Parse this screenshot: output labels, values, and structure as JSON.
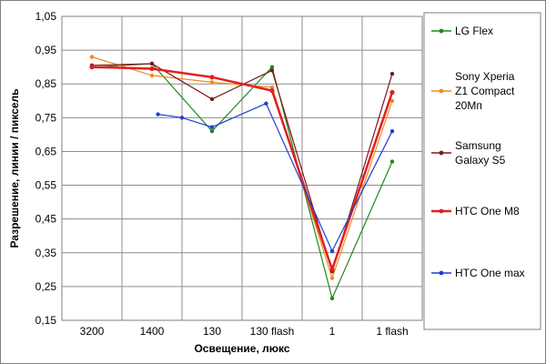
{
  "chart_data": {
    "type": "line",
    "categories": [
      "3200",
      "1400",
      "130",
      "130 flash",
      "1",
      "1 flash"
    ],
    "xlabel": "Освещение, люкс",
    "ylabel": "Разрешение, линии / пиксель",
    "ylim": [
      0.15,
      1.05
    ],
    "yticks": [
      "0,15",
      "0,25",
      "0,35",
      "0,45",
      "0,55",
      "0,65",
      "0,75",
      "0,85",
      "0,95",
      "1,05"
    ],
    "grid": true,
    "legend_position": "right",
    "series": [
      {
        "name": "LG Flex",
        "color": "#1f8a1f",
        "points": [
          [
            0,
            0.9
          ],
          [
            1,
            0.91
          ],
          [
            2,
            0.71
          ],
          [
            3,
            0.9
          ],
          [
            4,
            0.215
          ],
          [
            5,
            0.62
          ]
        ]
      },
      {
        "name": "Sony Xperia Z1 Compact 20Мп",
        "legend_lines": [
          "Sony Xperia",
          "Z1 Compact",
          "20Мп"
        ],
        "color": "#f08a24",
        "points": [
          [
            0,
            0.93
          ],
          [
            1,
            0.875
          ],
          [
            2,
            0.855
          ],
          [
            3,
            0.84
          ],
          [
            4,
            0.275
          ],
          [
            5,
            0.8
          ]
        ]
      },
      {
        "name": "Samsung Galaxy S5",
        "legend_lines": [
          "Samsung",
          "Galaxy S5"
        ],
        "color": "#7a1a1a",
        "points": [
          [
            0,
            0.905
          ],
          [
            1,
            0.91
          ],
          [
            2,
            0.805
          ],
          [
            3,
            0.89
          ],
          [
            4,
            0.295
          ],
          [
            5,
            0.88
          ]
        ]
      },
      {
        "name": "HTC One M8",
        "color": "#e02020",
        "width": 2.5,
        "points": [
          [
            0,
            0.9
          ],
          [
            1,
            0.895
          ],
          [
            2,
            0.87
          ],
          [
            3,
            0.83
          ],
          [
            4,
            0.3
          ],
          [
            5,
            0.825
          ]
        ]
      },
      {
        "name": "HTC One max",
        "color": "#1f3fd0",
        "points": [
          [
            1.1,
            0.76
          ],
          [
            1.5,
            0.75
          ],
          [
            2,
            0.722
          ],
          [
            2.9,
            0.792
          ],
          [
            4,
            0.355
          ],
          [
            5,
            0.71
          ]
        ]
      }
    ]
  }
}
